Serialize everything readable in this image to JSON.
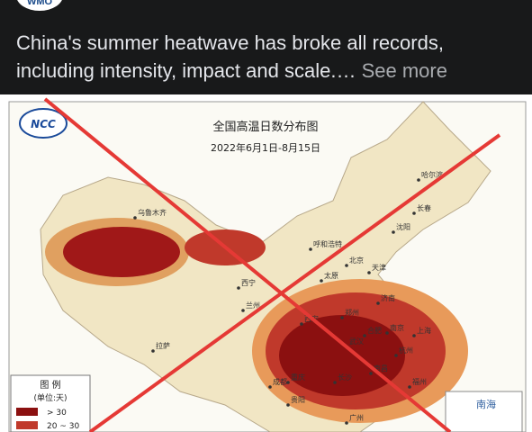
{
  "header": {
    "avatar": "WMO"
  },
  "post": {
    "text": "China's summer heatwave has broke all records, including intensity, impact and scale.…",
    "see_more": "See more"
  },
  "map": {
    "logo": "NCC",
    "title": "全国高温日数分布图",
    "subtitle": "2022年6月1日-8月15日",
    "legend": {
      "title": "图 例",
      "unit": "(单位:天)",
      "items": [
        "> 30",
        "20 ~ 30"
      ]
    },
    "cities": [
      "乌鲁木齐",
      "哈尔滨",
      "长春",
      "沈阳",
      "呼和浩特",
      "北京",
      "天津",
      "太原",
      "济南",
      "西宁",
      "兰州",
      "郑州",
      "西安",
      "南京",
      "合肥",
      "上海",
      "武汉",
      "杭州",
      "成都",
      "重庆",
      "长沙",
      "南昌",
      "福州",
      "贵阳",
      "拉萨",
      "广州"
    ],
    "inset": "南海"
  }
}
